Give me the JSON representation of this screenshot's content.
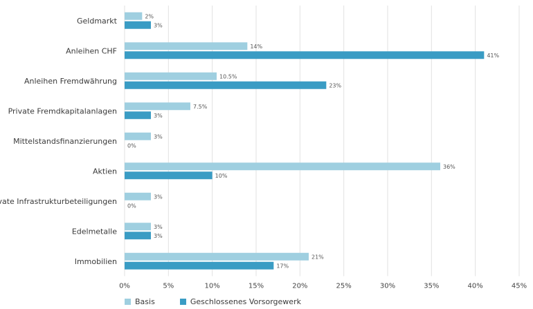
{
  "chart_data": {
    "type": "bar",
    "orientation": "horizontal",
    "categories": [
      "Geldmarkt",
      "Anleihen CHF",
      "Anleihen Fremdwährung",
      "Private Fremdkapitalanlagen",
      "Mittelstandsfinanzierungen",
      "Aktien",
      "Private Infrastrukturbeteiligungen",
      "Edelmetalle",
      "Immobilien"
    ],
    "series": [
      {
        "name": "Basis",
        "color": "#9fcfe0",
        "values": [
          2,
          14,
          10.5,
          7.5,
          3,
          36,
          3,
          3,
          21
        ],
        "labels": [
          "2%",
          "14%",
          "10.5%",
          "7.5%",
          "3%",
          "36%",
          "3%",
          "3%",
          "21%"
        ]
      },
      {
        "name": "Geschlossenes Vorsorgewerk",
        "color": "#3a9cc4",
        "values": [
          3,
          41,
          23,
          3,
          0,
          10,
          0,
          3,
          17
        ],
        "labels": [
          "3%",
          "41%",
          "23%",
          "3%",
          "0%",
          "10%",
          "0%",
          "3%",
          "17%"
        ]
      }
    ],
    "xlim": [
      0,
      45
    ],
    "xticks": [
      "0%",
      "5%",
      "10%",
      "15%",
      "20%",
      "25%",
      "30%",
      "35%",
      "40%",
      "45%"
    ],
    "grid": true,
    "legend_position": "bottom-left"
  }
}
